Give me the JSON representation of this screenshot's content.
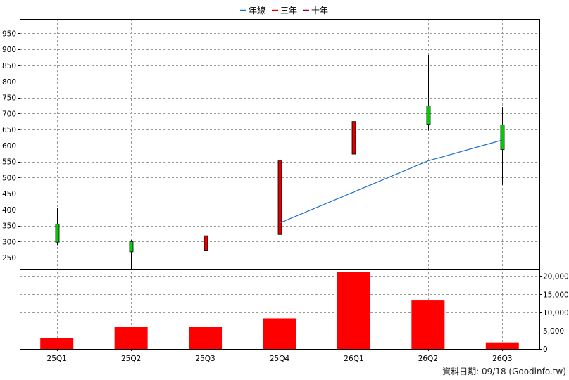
{
  "chart_data": {
    "type": "candlestick+bar",
    "legend": [
      {
        "label": "年線",
        "color": "#1e6fd0"
      },
      {
        "label": "三年",
        "color": "#e00000"
      },
      {
        "label": "十年",
        "color": "#8b0034"
      }
    ],
    "categories": [
      "25Q1",
      "25Q2",
      "25Q3",
      "25Q4",
      "26Q1",
      "26Q2",
      "26Q3"
    ],
    "price": {
      "ylim": [
        215,
        995
      ],
      "yticks": [
        250,
        300,
        350,
        400,
        450,
        500,
        550,
        600,
        650,
        700,
        750,
        800,
        850,
        900,
        950
      ],
      "candles": [
        {
          "open": 298,
          "close": 355,
          "high": 406,
          "low": 289
        },
        {
          "open": 268,
          "close": 300,
          "high": 305,
          "low": 214
        },
        {
          "open": 318,
          "close": 273,
          "high": 352,
          "low": 237
        },
        {
          "open": 552,
          "close": 322,
          "high": 554,
          "low": 276
        },
        {
          "open": 675,
          "close": 573,
          "high": 980,
          "low": 570
        },
        {
          "open": 666,
          "close": 724,
          "high": 883,
          "low": 647
        },
        {
          "open": 587,
          "close": 664,
          "high": 720,
          "low": 477
        }
      ],
      "year_line": [
        null,
        null,
        null,
        358,
        455,
        552,
        617
      ]
    },
    "volume": {
      "ylim": [
        0,
        22000
      ],
      "yticks": [
        0,
        5000,
        10000,
        15000,
        20000
      ],
      "yticklabels": [
        "0",
        "5,000",
        "10,000",
        "15,000",
        "20,000"
      ],
      "values": [
        2900,
        6100,
        6100,
        8400,
        21200,
        13300,
        1800
      ],
      "color": "#ff0000"
    },
    "colors": {
      "up": "#00cc00",
      "down": "#dd0000",
      "wick": "#000000",
      "grid": "#9a9a9a"
    }
  },
  "source_note": "資料日期: 09/18  (Goodinfo.tw)"
}
